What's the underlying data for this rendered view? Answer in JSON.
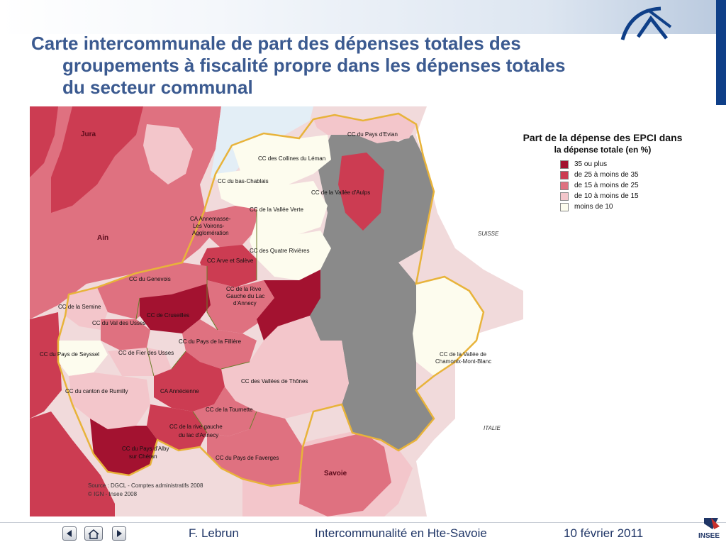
{
  "title": {
    "line1": "Carte intercommunale de part des dépenses totales des",
    "line2": "groupements à fiscalité propre dans les dépenses totales",
    "line3": "du secteur communal"
  },
  "legend": {
    "title": "Part de la dépense des EPCI dans",
    "subtitle": "la dépense totale (en %)",
    "items": [
      {
        "label": "35 ou plus",
        "color": "#a31230"
      },
      {
        "label": "de 25 à moins de 35",
        "color": "#cc3c52"
      },
      {
        "label": "de 15 à moins de 25",
        "color": "#df7180"
      },
      {
        "label": "de 10 à moins de 15",
        "color": "#f3c6cb"
      },
      {
        "label": "moins de 10",
        "color": "#fdfcee"
      }
    ]
  },
  "colors": {
    "ge35": "#a31230",
    "r25_35": "#cc3c52",
    "r15_25": "#df7180",
    "r10_15": "#f3c6cb",
    "lt10": "#fdfcee",
    "no_data": "#8a8a8a",
    "outside": "#f1dadb",
    "lake": "#e3eef6",
    "border_dept": "#e8b33a",
    "border_epci": "#6b7d2a",
    "header_blue": "#0f3f88",
    "title_blue": "#3b5a90"
  },
  "map": {
    "labels": {
      "jura": "Jura",
      "ain": "Ain",
      "suisse": "SUISSE",
      "italie": "ITALIE",
      "savoie": "Savoie",
      "pays_evian": "CC du Pays d'Evian",
      "collines_leman": "CC des Collines du Léman",
      "bas_chablais": "CC du bas-Chablais",
      "vallee_aulps": "CC de la Vallée d'Aulps",
      "vallee_verte": "CC de la Vallée Verte",
      "annemasse_1": "CA Annemasse-",
      "annemasse_2": "Les Voirons-",
      "annemasse_3": "Agglomération",
      "quatre_rivieres": "CC des Quatre Rivières",
      "arve_saleve": "CC Arve et Salève",
      "genevois": "CC du Genevois",
      "rive_gauche_1": "CC de la Rive",
      "rive_gauche_2": "Gauche du Lac",
      "rive_gauche_3": "d'Annecy",
      "semine": "CC de la Semine",
      "cruseilles": "CC de Cruseilles",
      "val_usses": "CC du Val des Usses",
      "fillière": "CC du Pays de la Fillière",
      "seyssel": "CC du Pays de Seyssel",
      "fier_usses": "CC de Fier des Usses",
      "vallees_thones": "CC des Vallées de Thônes",
      "chamonix_1": "CC de la Vallée de",
      "chamonix_2": "Chamonix-Mont-Blanc",
      "rumilly": "CC du canton de Rumilly",
      "annecienne": "CA Annécienne",
      "tournette": "CC de la Tournette",
      "rive_droite_1": "CC de la rive gauche",
      "rive_droite_2": "du lac d'Annecy",
      "alby_1": "CC du Pays d'Alby",
      "alby_2": "sur Chéran",
      "faverges": "CC du Pays de Faverges"
    },
    "source_1": "Source : DGCL - Comptes administratifs 2008",
    "source_2": "© IGN - Insee 2008"
  },
  "footer": {
    "author": "F. Lebrun",
    "topic": "Intercommunalité en Hte-Savoie",
    "date": "10 février 2011",
    "org": "INSEE"
  },
  "nav": {
    "prev_icon": "triangle-left-icon",
    "home_icon": "home-icon",
    "next_icon": "triangle-right-icon"
  }
}
